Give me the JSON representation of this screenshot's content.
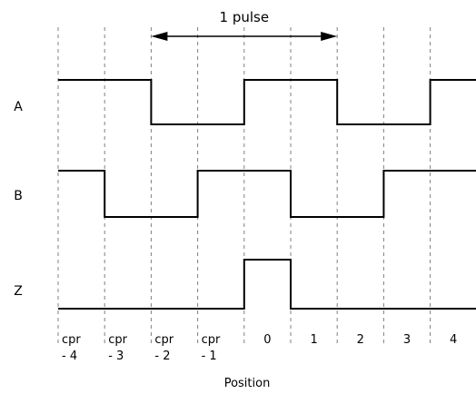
{
  "diagram": {
    "pulse_label": "1 pulse",
    "axis_label": "Position",
    "signal_labels": [
      "A",
      "B",
      "Z"
    ],
    "position_labels": [
      {
        "line1": "cpr",
        "line2": "- 4"
      },
      {
        "line1": "cpr",
        "line2": "- 3"
      },
      {
        "line1": "cpr",
        "line2": "- 2"
      },
      {
        "line1": "cpr",
        "line2": "- 1"
      },
      {
        "line1": "0",
        "line2": ""
      },
      {
        "line1": "1",
        "line2": ""
      },
      {
        "line1": "2",
        "line2": ""
      },
      {
        "line1": "3",
        "line2": ""
      },
      {
        "line1": "4",
        "line2": ""
      }
    ],
    "signals": [
      {
        "name": "A",
        "levels": [
          1,
          1,
          0,
          0,
          1,
          1,
          0,
          0,
          1
        ]
      },
      {
        "name": "B",
        "levels": [
          1,
          0,
          0,
          1,
          1,
          0,
          0,
          1,
          1
        ]
      },
      {
        "name": "Z",
        "levels": [
          0,
          0,
          0,
          0,
          1,
          0,
          0,
          0,
          0
        ]
      }
    ],
    "pulse_span_positions": [
      2,
      6
    ],
    "colors": {
      "wave": "#000000",
      "gridline": "#808080",
      "text": "#000000",
      "background": "#ffffff"
    }
  }
}
